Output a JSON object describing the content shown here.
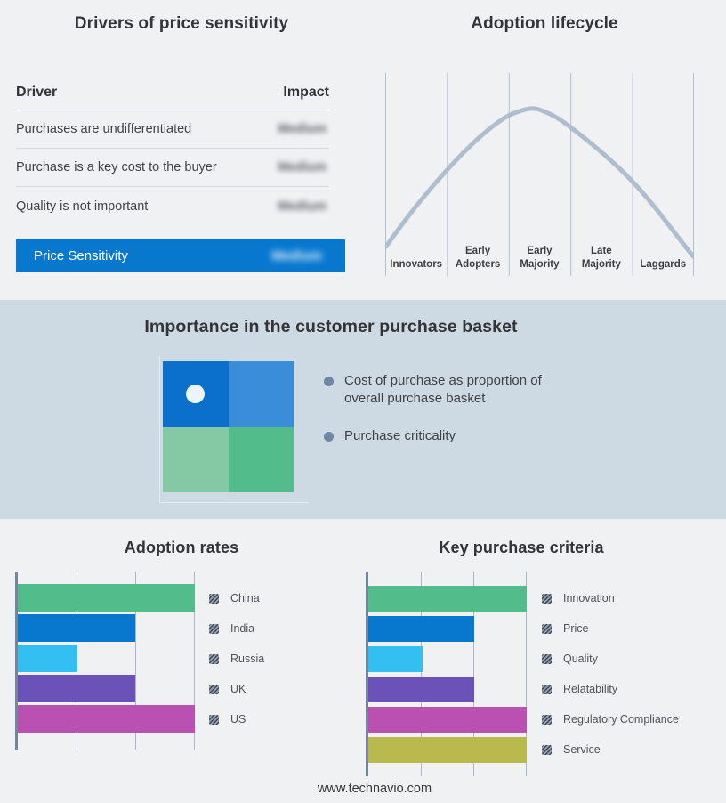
{
  "page": {
    "footer": "www.technavio.com",
    "background": "#f0f1f3",
    "band_background": "#cdd9e3",
    "accent_blue": "#0878cf"
  },
  "chart_data": [
    {
      "type": "table",
      "title": "Drivers of price sensitivity",
      "columns": [
        "Driver",
        "Impact"
      ],
      "rows": [
        {
          "driver": "Purchases are undifferentiated",
          "impact": "Medium"
        },
        {
          "driver": "Purchase is a key cost to the buyer",
          "impact": "Medium"
        },
        {
          "driver": "Quality is not important",
          "impact": "Medium"
        }
      ],
      "highlight_row": {
        "driver": "Price Sensitivity",
        "impact": "Medium"
      },
      "highlight_color": "#0878cf",
      "note": "Impact values are blurred/redacted in the source image"
    },
    {
      "type": "line",
      "title": "Adoption lifecycle",
      "categories": [
        "Innovators",
        "Early Adopters",
        "Early Majority",
        "Late Majority",
        "Laggards"
      ],
      "curve_color": "#a9bacc",
      "gridline_color": "#b2becf",
      "description": "Bell-shaped adoption curve rising from Innovators, peaking within Early Majority, falling through Laggards",
      "points_norm": [
        [
          0,
          0.14
        ],
        [
          0.2,
          0.52
        ],
        [
          0.4,
          0.79
        ],
        [
          0.48,
          0.82
        ],
        [
          0.6,
          0.73
        ],
        [
          0.8,
          0.46
        ],
        [
          1,
          0.1
        ]
      ]
    },
    {
      "type": "bar",
      "orientation": "horizontal",
      "title": "Adoption rates",
      "categories": [
        "China",
        "India",
        "Russia",
        "UK",
        "US"
      ],
      "values": [
        3,
        2,
        1,
        2,
        3
      ],
      "values_pct": [
        100,
        66.5,
        33.5,
        66.5,
        100
      ],
      "colors": [
        "#52bc8a",
        "#0878cf",
        "#33bff2",
        "#6a52b8",
        "#bb50b3"
      ],
      "xlim": [
        0,
        3
      ],
      "gridlines": true,
      "legend_position": "right",
      "note": "No numeric axis shown; legend swatches are hatched/redacted"
    },
    {
      "type": "bar",
      "orientation": "horizontal",
      "title": "Key purchase criteria",
      "categories": [
        "Innovation",
        "Price",
        "Quality",
        "Relatability",
        "Regulatory Compliance",
        "Service"
      ],
      "values": [
        3,
        2,
        1,
        2,
        3,
        3
      ],
      "values_pct": [
        100,
        67,
        34,
        67,
        100,
        100
      ],
      "colors": [
        "#52bc8a",
        "#0878cf",
        "#33bff2",
        "#6a52b8",
        "#bb50b3",
        "#b9b94e"
      ],
      "xlim": [
        0,
        3
      ],
      "gridlines": true,
      "legend_position": "right",
      "note": "No numeric axis shown; legend swatches are hatched/redacted"
    }
  ],
  "basket": {
    "title": "Importance in the customer purchase basket",
    "bullets": [
      "Cost of purchase as proportion of overall purchase basket",
      "Purchase criticality"
    ],
    "quadrant_colors": {
      "top_left": "#0b70cc",
      "top_right": "#3a8ed9",
      "bottom_left": "#85c8a4",
      "bottom_right": "#52bc8a"
    }
  }
}
